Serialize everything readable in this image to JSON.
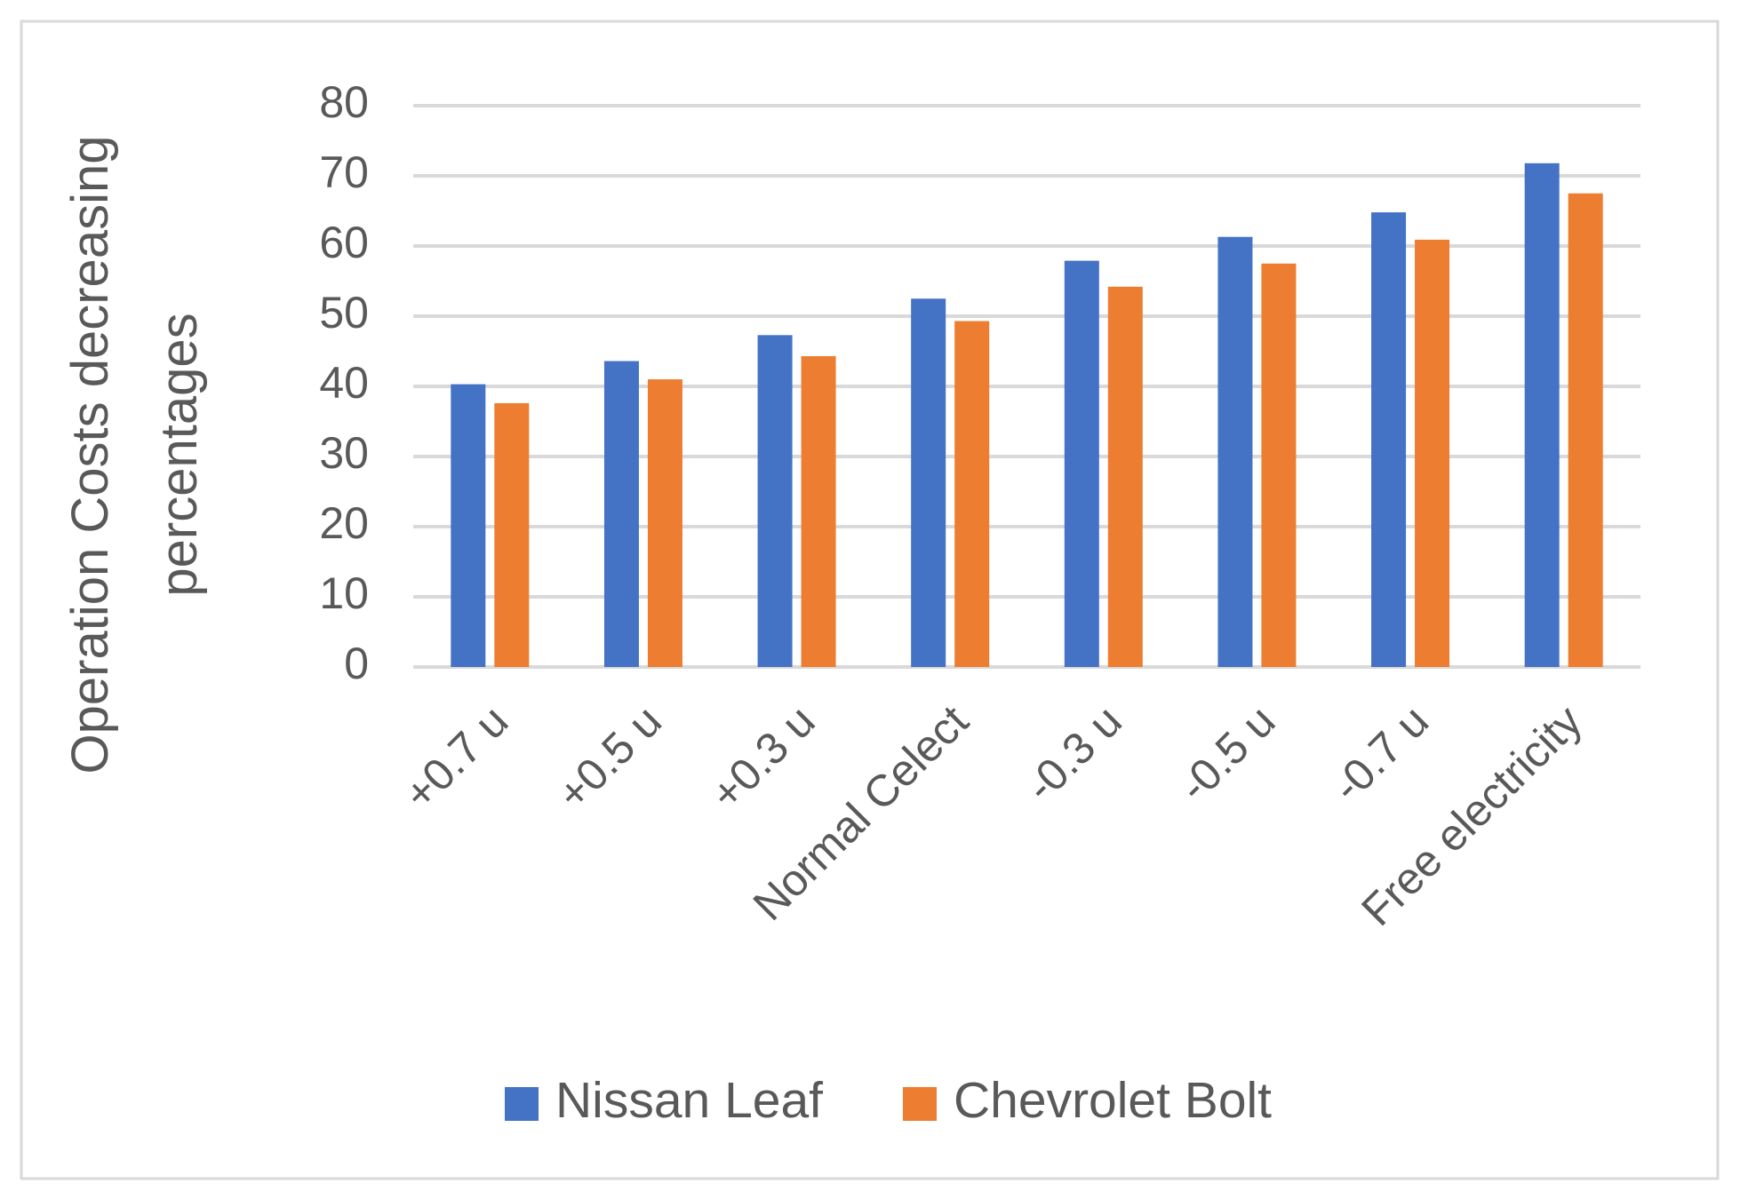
{
  "chart_data": {
    "type": "bar",
    "y_label": "Operation Costs decreasing percentages",
    "categories": [
      "+0.7 u",
      "+0.5 u",
      "+0.3 u",
      "Normal Celect",
      "-0.3 u",
      "-0.5 u",
      "-0.7 u",
      "Free electricity"
    ],
    "series": [
      {
        "name": "Nissan Leaf",
        "color": "#4472c4",
        "values": [
          40.3,
          43.6,
          47.3,
          52.5,
          57.9,
          61.3,
          64.8,
          71.8
        ]
      },
      {
        "name": "Chevrolet Bolt",
        "color": "#ed7d31",
        "values": [
          37.6,
          41.0,
          44.3,
          49.3,
          54.2,
          57.5,
          60.9,
          67.5
        ]
      }
    ],
    "ylim": [
      0,
      80
    ],
    "yticks": [
      0,
      10,
      20,
      30,
      40,
      50,
      60,
      70,
      80
    ],
    "grid": true,
    "legend": "bottom"
  }
}
